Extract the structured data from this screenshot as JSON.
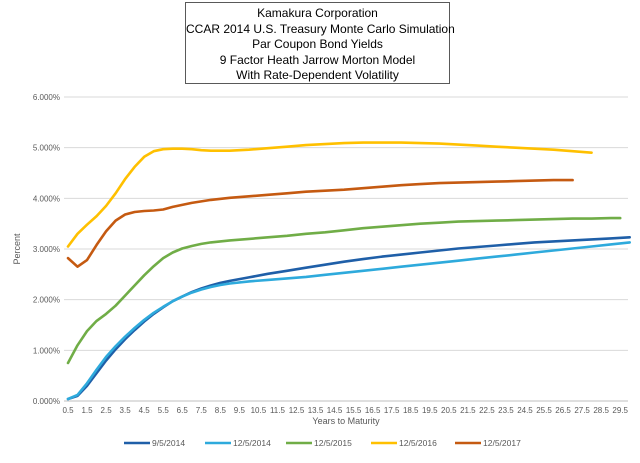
{
  "chart_data": {
    "type": "line",
    "title_lines": [
      "Kamakura Corporation",
      "CCAR 2014 U.S. Treasury Monte Carlo Simulation",
      "Par Coupon Bond Yields",
      "9 Factor Heath Jarrow Morton Model",
      "With Rate-Dependent Volatility"
    ],
    "xlabel": "Years to Maturity",
    "ylabel": "Percent",
    "ylim": [
      0,
      6
    ],
    "xlim": [
      0.5,
      30
    ],
    "y_ticks": [
      "0.000%",
      "1.000%",
      "2.000%",
      "3.000%",
      "4.000%",
      "5.000%",
      "6.000%"
    ],
    "x_ticks": [
      "0.5",
      "1.5",
      "2.5",
      "3.5",
      "4.5",
      "5.5",
      "6.5",
      "7.5",
      "8.5",
      "9.5",
      "10.5",
      "11.5",
      "12.5",
      "13.5",
      "14.5",
      "15.5",
      "16.5",
      "17.5",
      "18.5",
      "19.5",
      "20.5",
      "21.5",
      "22.5",
      "23.5",
      "24.5",
      "25.5",
      "26.5",
      "27.5",
      "28.5",
      "29.5"
    ],
    "grid": "horizontal",
    "legend_position": "bottom",
    "series": [
      {
        "name": "9/5/2014",
        "color": "#1f5fa8",
        "points": [
          [
            0.5,
            0.04
          ],
          [
            1,
            0.1
          ],
          [
            1.5,
            0.3
          ],
          [
            2,
            0.55
          ],
          [
            2.5,
            0.8
          ],
          [
            3,
            1.02
          ],
          [
            3.5,
            1.22
          ],
          [
            4,
            1.4
          ],
          [
            4.5,
            1.57
          ],
          [
            5,
            1.72
          ],
          [
            5.5,
            1.85
          ],
          [
            6,
            1.97
          ],
          [
            6.5,
            2.06
          ],
          [
            7,
            2.15
          ],
          [
            7.5,
            2.22
          ],
          [
            8,
            2.28
          ],
          [
            8.5,
            2.33
          ],
          [
            9,
            2.37
          ],
          [
            10,
            2.44
          ],
          [
            11,
            2.51
          ],
          [
            12,
            2.57
          ],
          [
            13,
            2.63
          ],
          [
            14,
            2.69
          ],
          [
            15,
            2.75
          ],
          [
            16,
            2.8
          ],
          [
            17,
            2.85
          ],
          [
            18,
            2.89
          ],
          [
            19,
            2.93
          ],
          [
            20,
            2.97
          ],
          [
            21,
            3.01
          ],
          [
            22,
            3.04
          ],
          [
            23,
            3.07
          ],
          [
            24,
            3.1
          ],
          [
            25,
            3.13
          ],
          [
            26,
            3.15
          ],
          [
            27,
            3.17
          ],
          [
            28,
            3.19
          ],
          [
            29,
            3.21
          ],
          [
            30,
            3.23
          ]
        ]
      },
      {
        "name": "12/5/2014",
        "color": "#2eaadc",
        "points": [
          [
            0.5,
            0.04
          ],
          [
            1,
            0.12
          ],
          [
            1.5,
            0.35
          ],
          [
            2,
            0.62
          ],
          [
            2.5,
            0.87
          ],
          [
            3,
            1.08
          ],
          [
            3.5,
            1.27
          ],
          [
            4,
            1.44
          ],
          [
            4.5,
            1.6
          ],
          [
            5,
            1.74
          ],
          [
            5.5,
            1.86
          ],
          [
            6,
            1.97
          ],
          [
            6.5,
            2.06
          ],
          [
            7,
            2.14
          ],
          [
            7.5,
            2.2
          ],
          [
            8,
            2.25
          ],
          [
            8.5,
            2.29
          ],
          [
            9,
            2.32
          ],
          [
            10,
            2.36
          ],
          [
            11,
            2.39
          ],
          [
            12,
            2.42
          ],
          [
            13,
            2.45
          ],
          [
            14,
            2.49
          ],
          [
            15,
            2.53
          ],
          [
            16,
            2.57
          ],
          [
            17,
            2.61
          ],
          [
            18,
            2.65
          ],
          [
            19,
            2.69
          ],
          [
            20,
            2.73
          ],
          [
            21,
            2.77
          ],
          [
            22,
            2.81
          ],
          [
            23,
            2.85
          ],
          [
            24,
            2.89
          ],
          [
            25,
            2.93
          ],
          [
            26,
            2.97
          ],
          [
            27,
            3.01
          ],
          [
            28,
            3.05
          ],
          [
            29,
            3.09
          ],
          [
            30,
            3.13
          ]
        ]
      },
      {
        "name": "12/5/2015",
        "color": "#70ad47",
        "points": [
          [
            0.5,
            0.75
          ],
          [
            1,
            1.1
          ],
          [
            1.5,
            1.38
          ],
          [
            2,
            1.58
          ],
          [
            2.5,
            1.72
          ],
          [
            3,
            1.88
          ],
          [
            3.5,
            2.08
          ],
          [
            4,
            2.28
          ],
          [
            4.5,
            2.48
          ],
          [
            5,
            2.66
          ],
          [
            5.5,
            2.82
          ],
          [
            6,
            2.93
          ],
          [
            6.5,
            3.01
          ],
          [
            7,
            3.06
          ],
          [
            7.5,
            3.1
          ],
          [
            8,
            3.13
          ],
          [
            8.5,
            3.15
          ],
          [
            9,
            3.17
          ],
          [
            10,
            3.2
          ],
          [
            11,
            3.23
          ],
          [
            12,
            3.26
          ],
          [
            13,
            3.3
          ],
          [
            14,
            3.33
          ],
          [
            15,
            3.37
          ],
          [
            16,
            3.41
          ],
          [
            17,
            3.44
          ],
          [
            18,
            3.47
          ],
          [
            19,
            3.5
          ],
          [
            20,
            3.52
          ],
          [
            21,
            3.54
          ],
          [
            22,
            3.55
          ],
          [
            23,
            3.56
          ],
          [
            24,
            3.57
          ],
          [
            25,
            3.58
          ],
          [
            26,
            3.59
          ],
          [
            27,
            3.6
          ],
          [
            28,
            3.6
          ],
          [
            29,
            3.61
          ],
          [
            29.5,
            3.61
          ]
        ]
      },
      {
        "name": "12/5/2016",
        "color": "#ffc000",
        "points": [
          [
            0.5,
            3.05
          ],
          [
            1,
            3.3
          ],
          [
            1.5,
            3.48
          ],
          [
            2,
            3.65
          ],
          [
            2.5,
            3.85
          ],
          [
            3,
            4.1
          ],
          [
            3.5,
            4.38
          ],
          [
            4,
            4.62
          ],
          [
            4.5,
            4.82
          ],
          [
            5,
            4.93
          ],
          [
            5.5,
            4.97
          ],
          [
            6,
            4.98
          ],
          [
            6.5,
            4.98
          ],
          [
            7,
            4.97
          ],
          [
            7.5,
            4.95
          ],
          [
            8,
            4.94
          ],
          [
            9,
            4.94
          ],
          [
            10,
            4.96
          ],
          [
            11,
            4.99
          ],
          [
            12,
            5.02
          ],
          [
            13,
            5.05
          ],
          [
            14,
            5.07
          ],
          [
            15,
            5.09
          ],
          [
            16,
            5.1
          ],
          [
            17,
            5.1
          ],
          [
            18,
            5.1
          ],
          [
            19,
            5.09
          ],
          [
            20,
            5.08
          ],
          [
            21,
            5.06
          ],
          [
            22,
            5.04
          ],
          [
            23,
            5.02
          ],
          [
            24,
            5.0
          ],
          [
            25,
            4.98
          ],
          [
            26,
            4.96
          ],
          [
            27,
            4.93
          ],
          [
            28,
            4.9
          ]
        ]
      },
      {
        "name": "12/5/2017",
        "color": "#c55a11",
        "points": [
          [
            0.5,
            2.82
          ],
          [
            1,
            2.65
          ],
          [
            1.5,
            2.78
          ],
          [
            2,
            3.08
          ],
          [
            2.5,
            3.35
          ],
          [
            3,
            3.56
          ],
          [
            3.5,
            3.68
          ],
          [
            4,
            3.73
          ],
          [
            4.5,
            3.75
          ],
          [
            5,
            3.76
          ],
          [
            5.5,
            3.78
          ],
          [
            6,
            3.83
          ],
          [
            6.5,
            3.87
          ],
          [
            7,
            3.91
          ],
          [
            7.5,
            3.94
          ],
          [
            8,
            3.97
          ],
          [
            9,
            4.01
          ],
          [
            10,
            4.04
          ],
          [
            11,
            4.07
          ],
          [
            12,
            4.1
          ],
          [
            13,
            4.13
          ],
          [
            14,
            4.15
          ],
          [
            15,
            4.17
          ],
          [
            16,
            4.2
          ],
          [
            17,
            4.23
          ],
          [
            18,
            4.26
          ],
          [
            19,
            4.28
          ],
          [
            20,
            4.3
          ],
          [
            21,
            4.31
          ],
          [
            22,
            4.32
          ],
          [
            23,
            4.33
          ],
          [
            24,
            4.34
          ],
          [
            25,
            4.35
          ],
          [
            26,
            4.36
          ],
          [
            27,
            4.36
          ]
        ]
      }
    ]
  }
}
